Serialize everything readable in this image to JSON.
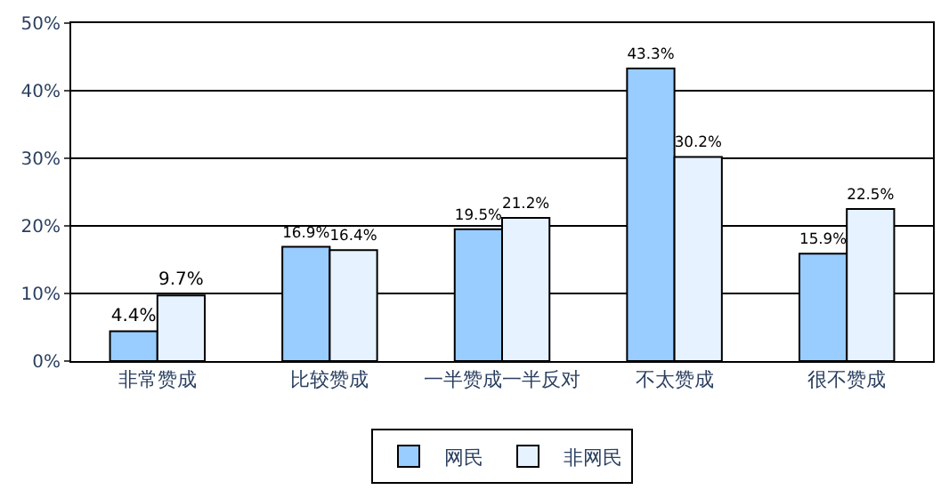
{
  "chart_data": {
    "type": "bar",
    "categories": [
      "非常赞成",
      "比较赞成",
      "一半赞成一半反对",
      "不太赞成",
      "很不赞成"
    ],
    "series": [
      {
        "name": "网民",
        "color": "#99ccff",
        "values": [
          4.4,
          16.9,
          19.5,
          43.3,
          15.9
        ],
        "value_labels": [
          "4.4%",
          "16.9%",
          "19.5%",
          "43.3%",
          "15.9%"
        ]
      },
      {
        "name": "非网民",
        "color": "#e6f2ff",
        "values": [
          9.7,
          16.4,
          21.2,
          30.2,
          22.5
        ],
        "value_labels": [
          "9.7%",
          "16.4%",
          "21.2%",
          "30.2%",
          "22.5%"
        ]
      }
    ],
    "ylim": [
      0,
      50
    ],
    "yticks": [
      {
        "value": 0,
        "label": "0%"
      },
      {
        "value": 10,
        "label": "10%"
      },
      {
        "value": 20,
        "label": "20%"
      },
      {
        "value": 30,
        "label": "30%"
      },
      {
        "value": 40,
        "label": "40%"
      },
      {
        "value": 50,
        "label": "50%"
      }
    ],
    "grid": "y",
    "legend": "bottom"
  }
}
